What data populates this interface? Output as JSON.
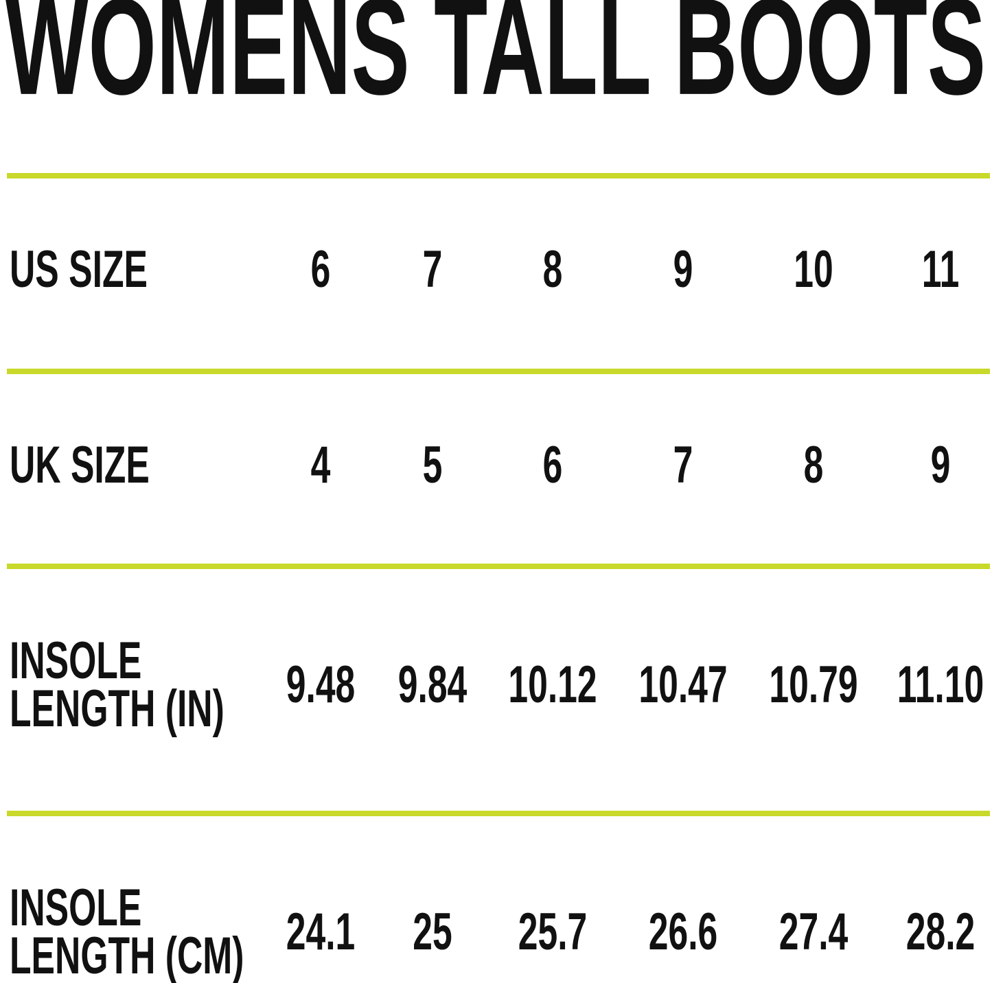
{
  "header": {
    "title": "WOMENS TALL BOOTS"
  },
  "table": {
    "rows": [
      {
        "label": [
          "US SIZE"
        ],
        "cells": [
          "6",
          "7",
          "8",
          "9",
          "10",
          "11"
        ]
      },
      {
        "label": [
          "UK SIZE"
        ],
        "cells": [
          "4",
          "5",
          "6",
          "7",
          "8",
          "9"
        ]
      },
      {
        "label": [
          "INSOLE",
          "LENGTH (IN)"
        ],
        "cells": [
          "9.48",
          "9.84",
          "10.12",
          "10.47",
          "10.79",
          "11.10"
        ]
      },
      {
        "label": [
          "INSOLE",
          "LENGTH (CM)"
        ],
        "cells": [
          "24.1",
          "25",
          "25.7",
          "26.6",
          "27.4",
          "28.2"
        ]
      }
    ]
  }
}
